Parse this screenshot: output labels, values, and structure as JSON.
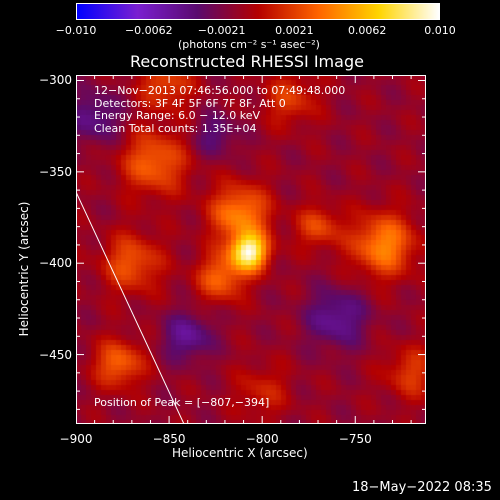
{
  "colorbar": {
    "tick_labels": [
      "−0.010",
      "−0.0062",
      "−0.0021",
      "0.0021",
      "0.0062",
      "0.010"
    ],
    "unit_label": "(photons cm⁻² s⁻¹ asec⁻²)",
    "colors": [
      "#0000ff",
      "#7a1fd0",
      "#5a0a6e",
      "#b40000",
      "#ff6400",
      "#ffd400",
      "#ffffff"
    ]
  },
  "chart_data": {
    "type": "heatmap",
    "title": "Reconstructed RHESSI Image",
    "xlabel": "Heliocentric X (arcsec)",
    "ylabel": "Heliocentric Y (arcsec)",
    "xlim": [
      -900,
      -712
    ],
    "ylim": [
      -488,
      -297
    ],
    "x_ticks": [
      "−900",
      "−850",
      "−800",
      "−750"
    ],
    "y_ticks": [
      "−300",
      "−350",
      "−400",
      "−450"
    ],
    "peak": {
      "x": -807,
      "y": -394
    },
    "limb_line": [
      [
        -900,
        -361
      ],
      [
        -842,
        -488
      ]
    ],
    "sources": [
      {
        "x": -807,
        "y": -394,
        "sigma": 7,
        "amp": 1.0
      },
      {
        "x": -812,
        "y": -373,
        "sigma": 11,
        "amp": 0.55
      },
      {
        "x": -822,
        "y": -408,
        "sigma": 9,
        "amp": 0.45
      },
      {
        "x": -858,
        "y": -345,
        "sigma": 12,
        "amp": 0.45
      },
      {
        "x": -870,
        "y": -400,
        "sigma": 11,
        "amp": 0.4
      },
      {
        "x": -852,
        "y": -302,
        "sigma": 10,
        "amp": 0.35
      },
      {
        "x": -877,
        "y": -455,
        "sigma": 9,
        "amp": 0.45
      },
      {
        "x": -735,
        "y": -390,
        "sigma": 12,
        "amp": 0.55
      },
      {
        "x": -770,
        "y": -380,
        "sigma": 8,
        "amp": 0.35
      },
      {
        "x": -785,
        "y": -310,
        "sigma": 10,
        "amp": 0.3
      },
      {
        "x": -720,
        "y": -460,
        "sigma": 10,
        "amp": 0.3
      },
      {
        "x": -800,
        "y": -470,
        "sigma": 10,
        "amp": 0.22
      },
      {
        "x": -840,
        "y": -440,
        "sigma": 9,
        "amp": -0.35
      },
      {
        "x": -760,
        "y": -430,
        "sigma": 11,
        "amp": -0.35
      },
      {
        "x": -890,
        "y": -320,
        "sigma": 10,
        "amp": -0.3
      },
      {
        "x": -825,
        "y": -330,
        "sigma": 8,
        "amp": -0.25
      }
    ],
    "info_lines": [
      "12−Nov−2013 07:46:56.000 to 07:49:48.000",
      "Detectors: 3F 4F 5F 6F 7F 8F, Att 0",
      "Energy Range: 6.0 − 12.0 keV",
      "Clean     Total counts: 1.35E+04"
    ],
    "peak_label": "Position of Peak = [−807,−394]"
  },
  "footer_timestamp": "18−May−2022 08:35"
}
